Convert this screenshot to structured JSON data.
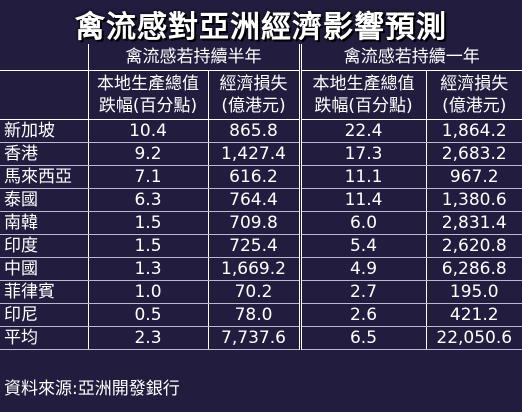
{
  "header": {
    "title": "禽流感對亞洲經濟影響預測"
  },
  "table": {
    "groups": [
      "禽流感若持續半年",
      "禽流感若持續一年"
    ],
    "columns": [
      [
        "本地生產總值",
        "跌幅(百分點)"
      ],
      [
        "經濟損失",
        "(億港元)"
      ],
      [
        "本地生產總值",
        "跌幅(百分點)"
      ],
      [
        "經濟損失",
        "(億港元)"
      ]
    ],
    "rows": [
      [
        "新加坡",
        "10.4",
        "865.8",
        "22.4",
        "1,864.2"
      ],
      [
        "香港",
        "9.2",
        "1,427.4",
        "17.3",
        "2,683.2"
      ],
      [
        "馬來西亞",
        "7.1",
        "616.2",
        "11.1",
        "967.2"
      ],
      [
        "泰國",
        "6.3",
        "764.4",
        "11.4",
        "1,380.6"
      ],
      [
        "南韓",
        "1.5",
        "709.8",
        "6.0",
        "2,831.4"
      ],
      [
        "印度",
        "1.5",
        "725.4",
        "5.4",
        "2,620.8"
      ],
      [
        "中國",
        "1.3",
        "1,669.2",
        "4.9",
        "6,286.8"
      ],
      [
        "菲律賓",
        "1.0",
        "70.2",
        "2.7",
        "195.0"
      ],
      [
        "印尼",
        "0.5",
        "78.0",
        "2.6",
        "421.2"
      ],
      [
        "平均",
        "2.3",
        "7,737.6",
        "6.5",
        "22,050.6"
      ]
    ]
  },
  "footer": {
    "source": "資料來源:亞洲開發銀行"
  }
}
